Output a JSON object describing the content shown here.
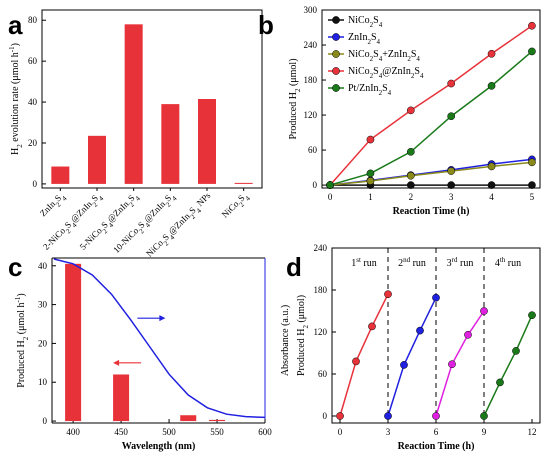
{
  "chart_data": [
    {
      "panel": "a",
      "type": "bar",
      "ylabel": "H2 evolution rate (μmol h⁻¹)",
      "ylim": [
        -2,
        85
      ],
      "yticks": [
        0,
        20,
        40,
        60,
        80
      ],
      "bar_color": "#e8323a",
      "categories": [
        "ZnIn2S4",
        "2-NiCo2S4@ZnIn2S4",
        "5-NiCo2S4@ZnIn2S4",
        "10-NiCo2S4@ZnIn2S4",
        "NiCo2S4@ZnIn2S4 NPs",
        "NiCo2S4"
      ],
      "category_labels": [
        [
          [
            "ZnIn",
            ""
          ],
          [
            "2",
            "sub"
          ],
          [
            "S",
            ""
          ],
          [
            "4",
            "sub"
          ]
        ],
        [
          [
            "2-NiCo",
            ""
          ],
          [
            "2",
            "sub"
          ],
          [
            "S",
            ""
          ],
          [
            "4",
            "sub"
          ],
          [
            "@ZnIn",
            ""
          ],
          [
            "2",
            "sub"
          ],
          [
            "S",
            ""
          ],
          [
            "4",
            "sub"
          ]
        ],
        [
          [
            "5-NiCo",
            ""
          ],
          [
            "2",
            "sub"
          ],
          [
            "S",
            ""
          ],
          [
            "4",
            "sub"
          ],
          [
            "@ZnIn",
            ""
          ],
          [
            "2",
            "sub"
          ],
          [
            "S",
            ""
          ],
          [
            "4",
            "sub"
          ]
        ],
        [
          [
            "10-NiCo",
            ""
          ],
          [
            "2",
            "sub"
          ],
          [
            "S",
            ""
          ],
          [
            "4",
            "sub"
          ],
          [
            "@ZnIn",
            ""
          ],
          [
            "2",
            "sub"
          ],
          [
            "S",
            ""
          ],
          [
            "4",
            "sub"
          ]
        ],
        [
          [
            "NiCo",
            ""
          ],
          [
            "2",
            "sub"
          ],
          [
            "S",
            ""
          ],
          [
            "4",
            "sub"
          ],
          [
            "@ZnIn",
            ""
          ],
          [
            "2",
            "sub"
          ],
          [
            "S",
            ""
          ],
          [
            "4",
            "sub"
          ],
          [
            " NPs",
            ""
          ]
        ],
        [
          [
            "NiCo",
            ""
          ],
          [
            "2",
            "sub"
          ],
          [
            "S",
            ""
          ],
          [
            "4",
            "sub"
          ]
        ]
      ],
      "values": [
        8.5,
        23.5,
        78,
        39,
        41.5,
        0.5
      ]
    },
    {
      "panel": "b",
      "type": "line",
      "xlabel": "Reaction Time (h)",
      "ylabel": "Produced H2 (μmol)",
      "xlim": [
        -0.2,
        5.2
      ],
      "ylim": [
        -5,
        300
      ],
      "xticks": [
        0,
        1,
        2,
        3,
        4,
        5
      ],
      "yticks": [
        0,
        60,
        120,
        180,
        240,
        300
      ],
      "x": [
        0,
        1,
        2,
        3,
        4,
        5
      ],
      "legend_position": "top-left",
      "series": [
        {
          "name": "NiCo2S4",
          "color": "#111111",
          "values": [
            0,
            0,
            0,
            0,
            0,
            0
          ]
        },
        {
          "name": "ZnIn2S4",
          "color": "#2020e0",
          "values": [
            0,
            8,
            17,
            26,
            36,
            44
          ]
        },
        {
          "name": "NiCo2S4+ZnIn2S4",
          "color": "#8a8a1a",
          "values": [
            0,
            7,
            16,
            24,
            32,
            39
          ]
        },
        {
          "name": "NiCo2S4@ZnIn2S4",
          "color": "#e8323a",
          "values": [
            0,
            78,
            128,
            174,
            225,
            273
          ]
        },
        {
          "name": "Pt/ZnIn2S4",
          "color": "#1a7a1a",
          "values": [
            0,
            20,
            57,
            118,
            170,
            229
          ]
        }
      ],
      "legend_labels": [
        [
          [
            "NiCo",
            ""
          ],
          [
            "2",
            "sub"
          ],
          [
            "S",
            ""
          ],
          [
            "4",
            "sub"
          ]
        ],
        [
          [
            "ZnIn",
            ""
          ],
          [
            "2",
            "sub"
          ],
          [
            "S",
            ""
          ],
          [
            "4",
            "sub"
          ]
        ],
        [
          [
            "NiCo",
            ""
          ],
          [
            "2",
            "sub"
          ],
          [
            "S",
            ""
          ],
          [
            "4",
            "sub"
          ],
          [
            "+ZnIn",
            ""
          ],
          [
            "2",
            "sub"
          ],
          [
            "S",
            ""
          ],
          [
            "4",
            "sub"
          ]
        ],
        [
          [
            "NiCo",
            ""
          ],
          [
            "2",
            "sub"
          ],
          [
            "S",
            ""
          ],
          [
            "4",
            "sub"
          ],
          [
            "@ZnIn",
            ""
          ],
          [
            "2",
            "sub"
          ],
          [
            "S",
            ""
          ],
          [
            "4",
            "sub"
          ]
        ],
        [
          [
            "Pt/ZnIn",
            ""
          ],
          [
            "2",
            "sub"
          ],
          [
            "S",
            ""
          ],
          [
            "4",
            "sub"
          ]
        ]
      ]
    },
    {
      "panel": "c",
      "type": "bar+line",
      "xlabel": "Wavelength (nm)",
      "ylabel": "Produced H2 (μmol h⁻¹)",
      "ylabel_right": "Absorbance (a.u.)",
      "xlim": [
        378,
        600
      ],
      "ylim": [
        -0.5,
        42
      ],
      "xticks": [
        400,
        450,
        500,
        550,
        600
      ],
      "yticks": [
        0,
        10,
        20,
        30,
        40
      ],
      "bar_color": "#e8323a",
      "line_color": "#2020e0",
      "bars": [
        {
          "x": 400,
          "value": 40.5
        },
        {
          "x": 450,
          "value": 12
        },
        {
          "x": 520,
          "value": 1.5
        },
        {
          "x": 550,
          "value": 0.3
        }
      ],
      "absorbance": {
        "x": [
          380,
          400,
          420,
          440,
          460,
          480,
          500,
          520,
          540,
          560,
          580,
          600
        ],
        "y": [
          1.0,
          0.97,
          0.9,
          0.78,
          0.62,
          0.45,
          0.28,
          0.15,
          0.07,
          0.03,
          0.015,
          0.01
        ]
      }
    },
    {
      "panel": "d",
      "type": "line",
      "xlabel": "Reaction Time (h)",
      "ylabel": "Produced H2 (μmol)",
      "xlim": [
        -0.5,
        12.5
      ],
      "ylim": [
        -10,
        240
      ],
      "xticks": [
        0,
        3,
        6,
        9,
        12
      ],
      "yticks": [
        0,
        60,
        120,
        180,
        240
      ],
      "dividers": [
        3,
        6,
        9
      ],
      "run_labels": [
        [
          [
            "1",
            ""
          ],
          [
            "st",
            "sup"
          ],
          [
            " run",
            ""
          ]
        ],
        [
          [
            "2",
            ""
          ],
          [
            "nd",
            "sup"
          ],
          [
            " run",
            ""
          ]
        ],
        [
          [
            "3",
            ""
          ],
          [
            "rd",
            "sup"
          ],
          [
            " run",
            ""
          ]
        ],
        [
          [
            "4",
            ""
          ],
          [
            "th",
            "sup"
          ],
          [
            " run",
            ""
          ]
        ]
      ],
      "series": [
        {
          "name": "1st run",
          "color": "#e8323a",
          "x": [
            0,
            1,
            2,
            3
          ],
          "values": [
            0,
            78,
            128,
            174
          ]
        },
        {
          "name": "2nd run",
          "color": "#2020e0",
          "x": [
            3,
            4,
            5,
            6
          ],
          "values": [
            0,
            73,
            122,
            169
          ]
        },
        {
          "name": "3rd run",
          "color": "#e020e0",
          "x": [
            6,
            7,
            8,
            9
          ],
          "values": [
            0,
            74,
            116,
            150
          ]
        },
        {
          "name": "4th run",
          "color": "#1a7a1a",
          "x": [
            9,
            10,
            11,
            12
          ],
          "values": [
            0,
            48,
            93,
            144
          ]
        }
      ]
    }
  ],
  "panel_letters": {
    "a": "a",
    "b": "b",
    "c": "c",
    "d": "d"
  }
}
